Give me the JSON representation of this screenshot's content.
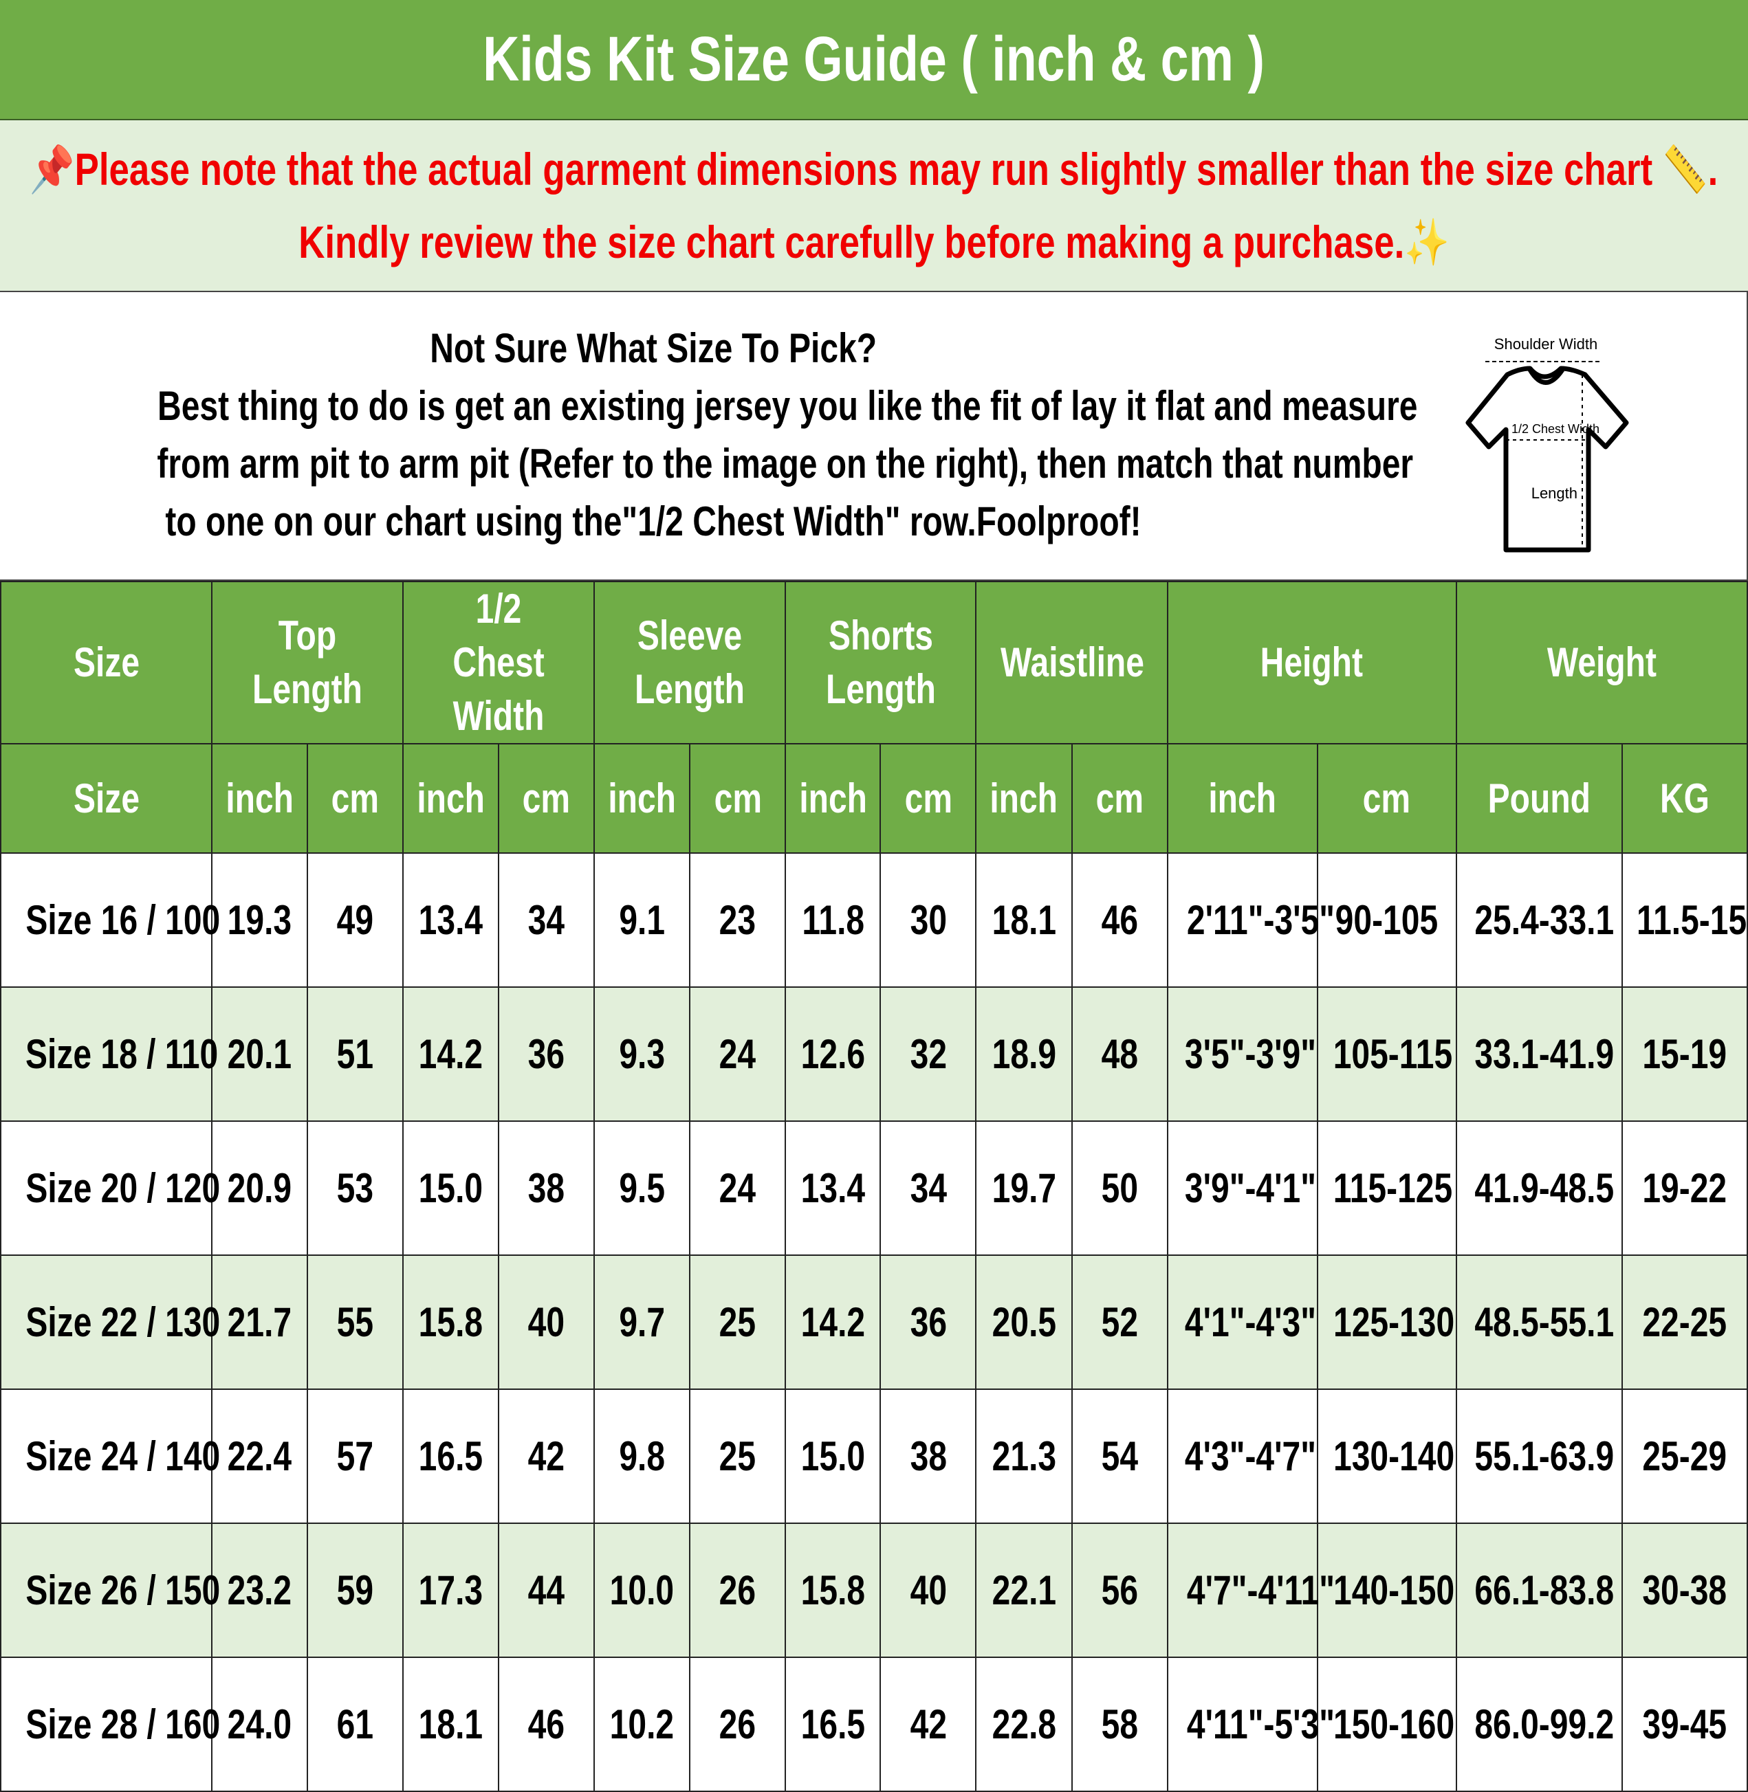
{
  "title": "Kids Kit Size Guide ( inch & cm )",
  "note": {
    "line1": "Please note that the actual garment dimensions may run slightly smaller than the size chart",
    "line1_end": ".",
    "line2": "Kindly review the size chart carefully before making a purchase.",
    "icons": [
      "pushpin-icon",
      "ruler-icon",
      "sparkles-icon"
    ],
    "color": "#f00000"
  },
  "info": {
    "heading": "Not Sure What Size To Pick?",
    "line1": "Best thing to do is get an existing jersey you like the fit of lay it flat and measure",
    "line2": "from arm pit to arm pit (Refer to the image on the right), then match that number",
    "line3": "to one on our chart using the\"1/2 Chest Width\" row.Foolproof!",
    "diagram": {
      "shoulder": "Shoulder Width",
      "chest": "1/2 Chest Width",
      "length": "Length"
    }
  },
  "colors": {
    "header_green": "#70ad47",
    "light_green": "#e2efda"
  },
  "table": {
    "groups": [
      "Size",
      "Top Length",
      "1/2 Chest Width",
      "Sleeve Length",
      "Shorts Length",
      "Waistline",
      "Height",
      "Weight"
    ],
    "units": [
      "Size",
      "inch",
      "cm",
      "inch",
      "cm",
      "inch",
      "cm",
      "inch",
      "cm",
      "inch",
      "cm",
      "inch",
      "cm",
      "Pound",
      "KG"
    ],
    "rows": [
      [
        "Size 16 / 100",
        "19.3",
        "49",
        "13.4",
        "34",
        "9.1",
        "23",
        "11.8",
        "30",
        "18.1",
        "46",
        "2'11\"-3'5\"",
        "90-105",
        "25.4-33.1",
        "11.5-15"
      ],
      [
        "Size 18 / 110",
        "20.1",
        "51",
        "14.2",
        "36",
        "9.3",
        "24",
        "12.6",
        "32",
        "18.9",
        "48",
        "3'5\"-3'9\"",
        "105-115",
        "33.1-41.9",
        "15-19"
      ],
      [
        "Size 20 / 120",
        "20.9",
        "53",
        "15.0",
        "38",
        "9.5",
        "24",
        "13.4",
        "34",
        "19.7",
        "50",
        "3'9\"-4'1\"",
        "115-125",
        "41.9-48.5",
        "19-22"
      ],
      [
        "Size 22 / 130",
        "21.7",
        "55",
        "15.8",
        "40",
        "9.7",
        "25",
        "14.2",
        "36",
        "20.5",
        "52",
        "4'1\"-4'3\"",
        "125-130",
        "48.5-55.1",
        "22-25"
      ],
      [
        "Size 24 / 140",
        "22.4",
        "57",
        "16.5",
        "42",
        "9.8",
        "25",
        "15.0",
        "38",
        "21.3",
        "54",
        "4'3\"-4'7\"",
        "130-140",
        "55.1-63.9",
        "25-29"
      ],
      [
        "Size 26 / 150",
        "23.2",
        "59",
        "17.3",
        "44",
        "10.0",
        "26",
        "15.8",
        "40",
        "22.1",
        "56",
        "4'7\"-4'11\"",
        "140-150",
        "66.1-83.8",
        "30-38"
      ],
      [
        "Size 28 / 160",
        "24.0",
        "61",
        "18.1",
        "46",
        "10.2",
        "26",
        "16.5",
        "42",
        "22.8",
        "58",
        "4'11\"-5'3\"",
        "150-160",
        "86.0-99.2",
        "39-45"
      ]
    ]
  }
}
